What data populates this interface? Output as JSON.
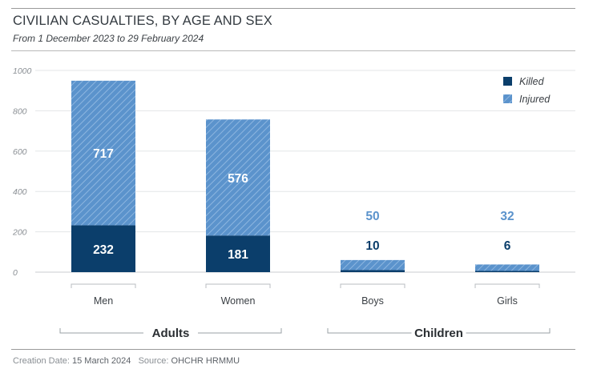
{
  "header": {
    "title": "CIVILIAN CASUALTIES, BY AGE AND SEX",
    "subtitle": "From 1 December 2023 to 29 February 2024"
  },
  "footer": {
    "creation_label": "Creation Date:",
    "creation_value": "15 March 2024",
    "source_label": "Source:",
    "source_value": "OHCHR HRMMU"
  },
  "colors": {
    "killed": "#0b3e6b",
    "injured": "#5b93cc",
    "injured_hatch": "#8db6e0",
    "gridline": "#e3e5e7"
  },
  "chart_data": {
    "type": "bar",
    "stacked": true,
    "title": "CIVILIAN CASUALTIES, BY AGE AND SEX",
    "subtitle": "From 1 December 2023 to 29 February 2024",
    "categories": [
      "Men",
      "Women",
      "Boys",
      "Girls"
    ],
    "groups": [
      {
        "name": "Adults",
        "categories": [
          "Men",
          "Women"
        ]
      },
      {
        "name": "Children",
        "categories": [
          "Boys",
          "Girls"
        ]
      }
    ],
    "series": [
      {
        "name": "Killed",
        "values": [
          232,
          181,
          10,
          6
        ]
      },
      {
        "name": "Injured",
        "values": [
          717,
          576,
          50,
          32
        ]
      }
    ],
    "ylim": [
      0,
      1000
    ],
    "yticks": [
      0,
      200,
      400,
      600,
      800,
      1000
    ],
    "grid": true,
    "legend": "top-right",
    "xlabel": "",
    "ylabel": ""
  }
}
